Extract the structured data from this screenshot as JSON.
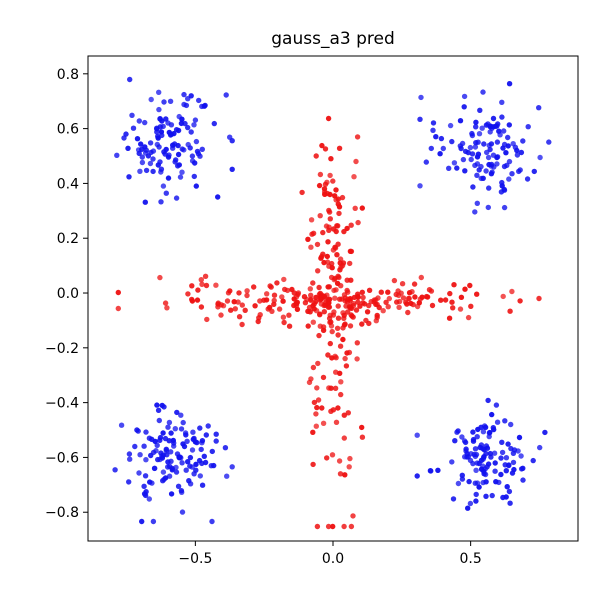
{
  "chart_data": {
    "type": "scatter",
    "title": "gauss_a3 pred",
    "xlabel": "",
    "ylabel": "",
    "xlim": [
      -0.89,
      0.89
    ],
    "ylim": [
      -0.905,
      0.865
    ],
    "xticks": [
      -0.5,
      0.0,
      0.5
    ],
    "xtick_labels": [
      "−0.5",
      "0.0",
      "0.5"
    ],
    "yticks": [
      -0.8,
      -0.6,
      -0.4,
      -0.2,
      0.0,
      0.2,
      0.4,
      0.6,
      0.8
    ],
    "ytick_labels": [
      "−0.8",
      "−0.6",
      "−0.4",
      "−0.2",
      "0.0",
      "0.2",
      "0.4",
      "0.6",
      "0.8"
    ],
    "grid": false,
    "legend": "none",
    "colors": {
      "class_a": "#ee1111",
      "class_b": "#1111ee"
    },
    "clusters": [
      {
        "class": "b",
        "center": [
          -0.6,
          0.55
        ],
        "spread": [
          0.09,
          0.09
        ],
        "count": 120
      },
      {
        "class": "b",
        "center": [
          0.55,
          0.53
        ],
        "spread": [
          0.09,
          0.09
        ],
        "count": 120
      },
      {
        "class": "b",
        "center": [
          -0.6,
          -0.6
        ],
        "spread": [
          0.09,
          0.09
        ],
        "count": 130
      },
      {
        "class": "b",
        "center": [
          0.54,
          -0.6
        ],
        "spread": [
          0.09,
          0.08
        ],
        "count": 120
      },
      {
        "class": "a",
        "center": [
          -0.0,
          -0.02
        ],
        "spread": [
          0.05,
          0.32
        ],
        "count": 190
      },
      {
        "class": "a",
        "center": [
          -0.0,
          -0.03
        ],
        "spread": [
          0.3,
          0.035
        ],
        "count": 210
      }
    ]
  }
}
